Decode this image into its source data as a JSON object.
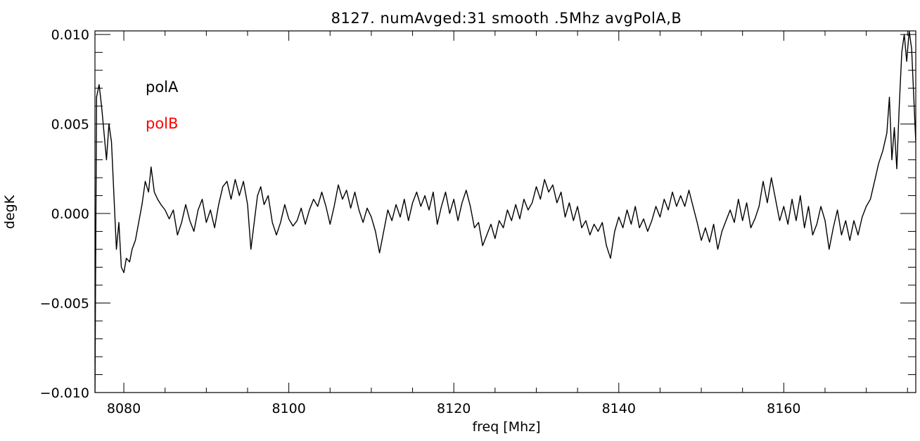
{
  "chart_data": {
    "type": "line",
    "title": "8127. numAvged:31 smooth .5Mhz avgPolA,B",
    "xlabel": "freq [Mhz]",
    "ylabel": "degK",
    "xlim": [
      8076.5,
      8176
    ],
    "ylim": [
      -0.01,
      0.0102
    ],
    "xticks": [
      8080,
      8100,
      8120,
      8140,
      8160
    ],
    "xtick_labels": [
      "8080",
      "8100",
      "8120",
      "8140",
      "8160"
    ],
    "yticks": [
      -0.01,
      -0.005,
      0.0,
      0.005,
      0.01
    ],
    "ytick_labels": [
      "−0.010",
      "−0.005",
      "0.000",
      "0.005",
      "0.010"
    ],
    "grid": false,
    "legend_placement": "top-left",
    "legend": [
      {
        "label": "polA",
        "color": "#000000"
      },
      {
        "label": "polB",
        "color": "#ff0000"
      }
    ],
    "series": [
      {
        "name": "polA",
        "color": "#000000",
        "points": [
          [
            8076.5,
            -0.01
          ],
          [
            8076.7,
            0.0065
          ],
          [
            8077.0,
            0.0072
          ],
          [
            8077.3,
            0.006
          ],
          [
            8077.6,
            0.0045
          ],
          [
            8077.9,
            0.003
          ],
          [
            8078.2,
            0.005
          ],
          [
            8078.5,
            0.004
          ],
          [
            8078.8,
            0.001
          ],
          [
            8079.1,
            -0.002
          ],
          [
            8079.4,
            -0.0005
          ],
          [
            8079.7,
            -0.003
          ],
          [
            8080.0,
            -0.0033
          ],
          [
            8080.3,
            -0.0025
          ],
          [
            8080.7,
            -0.0027
          ],
          [
            8081.0,
            -0.002
          ],
          [
            8081.4,
            -0.0015
          ],
          [
            8081.8,
            -0.0005
          ],
          [
            8082.2,
            0.0005
          ],
          [
            8082.6,
            0.0018
          ],
          [
            8083.0,
            0.0012
          ],
          [
            8083.3,
            0.0026
          ],
          [
            8083.7,
            0.0012
          ],
          [
            8084.1,
            0.0008
          ],
          [
            8084.5,
            0.0005
          ],
          [
            8085.0,
            0.0002
          ],
          [
            8085.5,
            -0.0003
          ],
          [
            8086.0,
            0.0002
          ],
          [
            8086.5,
            -0.0012
          ],
          [
            8087.0,
            -0.0005
          ],
          [
            8087.5,
            0.0005
          ],
          [
            8088.0,
            -0.0004
          ],
          [
            8088.5,
            -0.001
          ],
          [
            8089.0,
            0.0002
          ],
          [
            8089.5,
            0.0008
          ],
          [
            8090.0,
            -0.0005
          ],
          [
            8090.5,
            0.0002
          ],
          [
            8091.0,
            -0.0008
          ],
          [
            8091.5,
            0.0005
          ],
          [
            8092.0,
            0.0015
          ],
          [
            8092.5,
            0.0018
          ],
          [
            8093.0,
            0.0008
          ],
          [
            8093.5,
            0.0019
          ],
          [
            8094.0,
            0.001
          ],
          [
            8094.5,
            0.0018
          ],
          [
            8095.0,
            0.0005
          ],
          [
            8095.4,
            -0.002
          ],
          [
            8095.8,
            -0.0005
          ],
          [
            8096.2,
            0.001
          ],
          [
            8096.6,
            0.0015
          ],
          [
            8097.0,
            0.0005
          ],
          [
            8097.5,
            0.001
          ],
          [
            8098.0,
            -0.0005
          ],
          [
            8098.5,
            -0.0012
          ],
          [
            8099.0,
            -0.0005
          ],
          [
            8099.5,
            0.0005
          ],
          [
            8100.0,
            -0.0003
          ],
          [
            8100.5,
            -0.0007
          ],
          [
            8101.0,
            -0.0004
          ],
          [
            8101.5,
            0.0003
          ],
          [
            8102.0,
            -0.0006
          ],
          [
            8102.5,
            0.0002
          ],
          [
            8103.0,
            0.0008
          ],
          [
            8103.5,
            0.0004
          ],
          [
            8104.0,
            0.0012
          ],
          [
            8104.5,
            0.0004
          ],
          [
            8105.0,
            -0.0006
          ],
          [
            8105.5,
            0.0004
          ],
          [
            8106.0,
            0.0016
          ],
          [
            8106.5,
            0.0008
          ],
          [
            8107.0,
            0.0013
          ],
          [
            8107.5,
            0.0003
          ],
          [
            8108.0,
            0.0012
          ],
          [
            8108.5,
            0.0002
          ],
          [
            8109.0,
            -0.0005
          ],
          [
            8109.5,
            0.0003
          ],
          [
            8110.0,
            -0.0002
          ],
          [
            8110.5,
            -0.001
          ],
          [
            8111.0,
            -0.0022
          ],
          [
            8111.5,
            -0.001
          ],
          [
            8112.0,
            0.0002
          ],
          [
            8112.5,
            -0.0004
          ],
          [
            8113.0,
            0.0005
          ],
          [
            8113.5,
            -0.0002
          ],
          [
            8114.0,
            0.0008
          ],
          [
            8114.5,
            -0.0004
          ],
          [
            8115.0,
            0.0006
          ],
          [
            8115.5,
            0.0012
          ],
          [
            8116.0,
            0.0004
          ],
          [
            8116.5,
            0.001
          ],
          [
            8117.0,
            0.0002
          ],
          [
            8117.5,
            0.0012
          ],
          [
            8118.0,
            -0.0006
          ],
          [
            8118.5,
            0.0004
          ],
          [
            8119.0,
            0.0012
          ],
          [
            8119.5,
            0.0
          ],
          [
            8120.0,
            0.0008
          ],
          [
            8120.5,
            -0.0004
          ],
          [
            8121.0,
            0.0006
          ],
          [
            8121.5,
            0.0013
          ],
          [
            8122.0,
            0.0004
          ],
          [
            8122.5,
            -0.0008
          ],
          [
            8123.0,
            -0.0005
          ],
          [
            8123.5,
            -0.0018
          ],
          [
            8124.0,
            -0.0012
          ],
          [
            8124.5,
            -0.0006
          ],
          [
            8125.0,
            -0.0014
          ],
          [
            8125.5,
            -0.0004
          ],
          [
            8126.0,
            -0.0008
          ],
          [
            8126.5,
            0.0002
          ],
          [
            8127.0,
            -0.0004
          ],
          [
            8127.5,
            0.0005
          ],
          [
            8128.0,
            -0.0003
          ],
          [
            8128.5,
            0.0008
          ],
          [
            8129.0,
            0.0002
          ],
          [
            8129.5,
            0.0006
          ],
          [
            8130.0,
            0.0015
          ],
          [
            8130.5,
            0.0008
          ],
          [
            8131.0,
            0.0019
          ],
          [
            8131.5,
            0.0012
          ],
          [
            8132.0,
            0.0016
          ],
          [
            8132.5,
            0.0006
          ],
          [
            8133.0,
            0.0012
          ],
          [
            8133.5,
            -0.0002
          ],
          [
            8134.0,
            0.0006
          ],
          [
            8134.5,
            -0.0004
          ],
          [
            8135.0,
            0.0004
          ],
          [
            8135.5,
            -0.0008
          ],
          [
            8136.0,
            -0.0004
          ],
          [
            8136.5,
            -0.0012
          ],
          [
            8137.0,
            -0.0006
          ],
          [
            8137.5,
            -0.001
          ],
          [
            8138.0,
            -0.0005
          ],
          [
            8138.5,
            -0.0018
          ],
          [
            8139.0,
            -0.0025
          ],
          [
            8139.5,
            -0.001
          ],
          [
            8140.0,
            -0.0002
          ],
          [
            8140.5,
            -0.0008
          ],
          [
            8141.0,
            0.0002
          ],
          [
            8141.5,
            -0.0006
          ],
          [
            8142.0,
            0.0004
          ],
          [
            8142.5,
            -0.0008
          ],
          [
            8143.0,
            -0.0003
          ],
          [
            8143.5,
            -0.001
          ],
          [
            8144.0,
            -0.0004
          ],
          [
            8144.5,
            0.0004
          ],
          [
            8145.0,
            -0.0002
          ],
          [
            8145.5,
            0.0008
          ],
          [
            8146.0,
            0.0002
          ],
          [
            8146.5,
            0.0012
          ],
          [
            8147.0,
            0.0004
          ],
          [
            8147.5,
            0.001
          ],
          [
            8148.0,
            0.0004
          ],
          [
            8148.5,
            0.0013
          ],
          [
            8149.0,
            0.0004
          ],
          [
            8149.5,
            -0.0005
          ],
          [
            8150.0,
            -0.0015
          ],
          [
            8150.5,
            -0.0008
          ],
          [
            8151.0,
            -0.0016
          ],
          [
            8151.5,
            -0.0006
          ],
          [
            8152.0,
            -0.002
          ],
          [
            8152.5,
            -0.001
          ],
          [
            8153.0,
            -0.0004
          ],
          [
            8153.5,
            0.0002
          ],
          [
            8154.0,
            -0.0005
          ],
          [
            8154.5,
            0.0008
          ],
          [
            8155.0,
            -0.0004
          ],
          [
            8155.5,
            0.0006
          ],
          [
            8156.0,
            -0.0008
          ],
          [
            8156.5,
            -0.0003
          ],
          [
            8157.0,
            0.0004
          ],
          [
            8157.5,
            0.0018
          ],
          [
            8158.0,
            0.0006
          ],
          [
            8158.5,
            0.002
          ],
          [
            8159.0,
            0.0008
          ],
          [
            8159.5,
            -0.0004
          ],
          [
            8160.0,
            0.0004
          ],
          [
            8160.5,
            -0.0006
          ],
          [
            8161.0,
            0.0008
          ],
          [
            8161.5,
            -0.0004
          ],
          [
            8162.0,
            0.001
          ],
          [
            8162.5,
            -0.0008
          ],
          [
            8163.0,
            0.0004
          ],
          [
            8163.5,
            -0.0012
          ],
          [
            8164.0,
            -0.0006
          ],
          [
            8164.5,
            0.0004
          ],
          [
            8165.0,
            -0.0004
          ],
          [
            8165.5,
            -0.002
          ],
          [
            8166.0,
            -0.0008
          ],
          [
            8166.5,
            0.0002
          ],
          [
            8167.0,
            -0.0012
          ],
          [
            8167.5,
            -0.0004
          ],
          [
            8168.0,
            -0.0015
          ],
          [
            8168.5,
            -0.0004
          ],
          [
            8169.0,
            -0.0012
          ],
          [
            8169.5,
            -0.0002
          ],
          [
            8170.0,
            0.0004
          ],
          [
            8170.5,
            0.0008
          ],
          [
            8171.0,
            0.0018
          ],
          [
            8171.5,
            0.0028
          ],
          [
            8172.0,
            0.0035
          ],
          [
            8172.5,
            0.0045
          ],
          [
            8172.8,
            0.0065
          ],
          [
            8173.1,
            0.003
          ],
          [
            8173.4,
            0.0048
          ],
          [
            8173.7,
            0.0025
          ],
          [
            8174.0,
            0.006
          ],
          [
            8174.3,
            0.009
          ],
          [
            8174.6,
            0.01
          ],
          [
            8174.9,
            0.0085
          ],
          [
            8175.2,
            0.0102
          ],
          [
            8175.5,
            0.0092
          ],
          [
            8175.8,
            0.006
          ],
          [
            8176.0,
            0.004
          ]
        ]
      }
    ]
  }
}
